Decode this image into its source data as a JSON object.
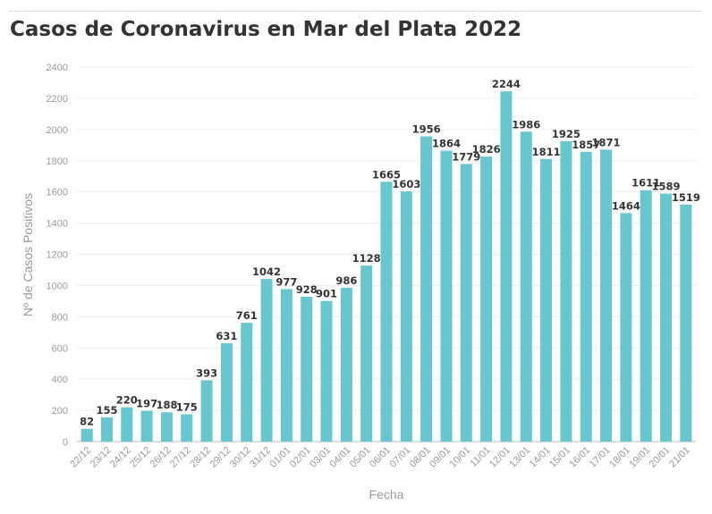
{
  "page": {
    "title": "Casos de Coronavirus en Mar del Plata 2022"
  },
  "chart_data": {
    "type": "bar",
    "title": "Casos de Coronavirus en Mar del Plata 2022",
    "xlabel": "Fecha",
    "ylabel": "Nº de Casos Positivos",
    "ylim": [
      0,
      2400
    ],
    "yticks": [
      0,
      200,
      400,
      600,
      800,
      1000,
      1200,
      1400,
      1600,
      1800,
      2000,
      2200,
      2400
    ],
    "grid": true,
    "bar_color": "#67c6ce",
    "categories": [
      "22/12",
      "23/12",
      "24/12",
      "25/12",
      "26/12",
      "27/12",
      "28/12",
      "29/12",
      "30/12",
      "31/12",
      "01/01",
      "02/01",
      "03/01",
      "04/01",
      "05/01",
      "06/01",
      "07/01",
      "08/01",
      "09/01",
      "10/01",
      "11/01",
      "12/01",
      "13/01",
      "14/01",
      "15/01",
      "16/01",
      "17/01",
      "18/01",
      "19/01",
      "20/01",
      "21/01"
    ],
    "values": [
      82,
      155,
      220,
      197,
      188,
      175,
      393,
      631,
      761,
      1042,
      977,
      928,
      901,
      986,
      1128,
      1665,
      1603,
      1956,
      1864,
      1779,
      1826,
      2244,
      1986,
      1811,
      1925,
      1857,
      1871,
      1464,
      1611,
      1589,
      1519
    ]
  }
}
